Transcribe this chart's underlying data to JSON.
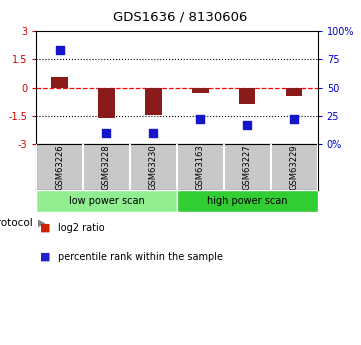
{
  "title": "GDS1636 / 8130606",
  "samples": [
    "GSM63226",
    "GSM63228",
    "GSM63230",
    "GSM63163",
    "GSM63227",
    "GSM63229"
  ],
  "log2_ratio": [
    0.55,
    -1.62,
    -1.45,
    -0.3,
    -0.85,
    -0.42
  ],
  "percentile_rank": [
    83,
    10,
    10,
    22,
    17,
    22
  ],
  "bar_color": "#8B1A1A",
  "dot_color": "#1515CC",
  "ylim_left": [
    -3,
    3
  ],
  "ylim_right": [
    0,
    100
  ],
  "yticks_left": [
    -3,
    -1.5,
    0,
    1.5,
    3
  ],
  "yticks_right": [
    0,
    25,
    50,
    75,
    100
  ],
  "ytick_labels_right": [
    "0%",
    "25",
    "50",
    "75",
    "100%"
  ],
  "hline_y": 0,
  "dotted_lines": [
    -1.5,
    1.5
  ],
  "groups": [
    {
      "label": "low power scan",
      "n_samples": 3,
      "color": "#90EE90"
    },
    {
      "label": "high power scan",
      "n_samples": 3,
      "color": "#32CD32"
    }
  ],
  "protocol_label": "protocol",
  "legend_items": [
    {
      "label": "log2 ratio",
      "color": "#CC2200"
    },
    {
      "label": "percentile rank within the sample",
      "color": "#2222CC"
    }
  ],
  "background_color": "#FFFFFF",
  "plot_bg": "#FFFFFF",
  "axis_label_color_left": "#CC0000",
  "axis_label_color_right": "#0000CC",
  "bar_width": 0.35,
  "dot_size": 30,
  "sample_label_bg": "#C8C8C8",
  "sample_label_border": "#FFFFFF"
}
